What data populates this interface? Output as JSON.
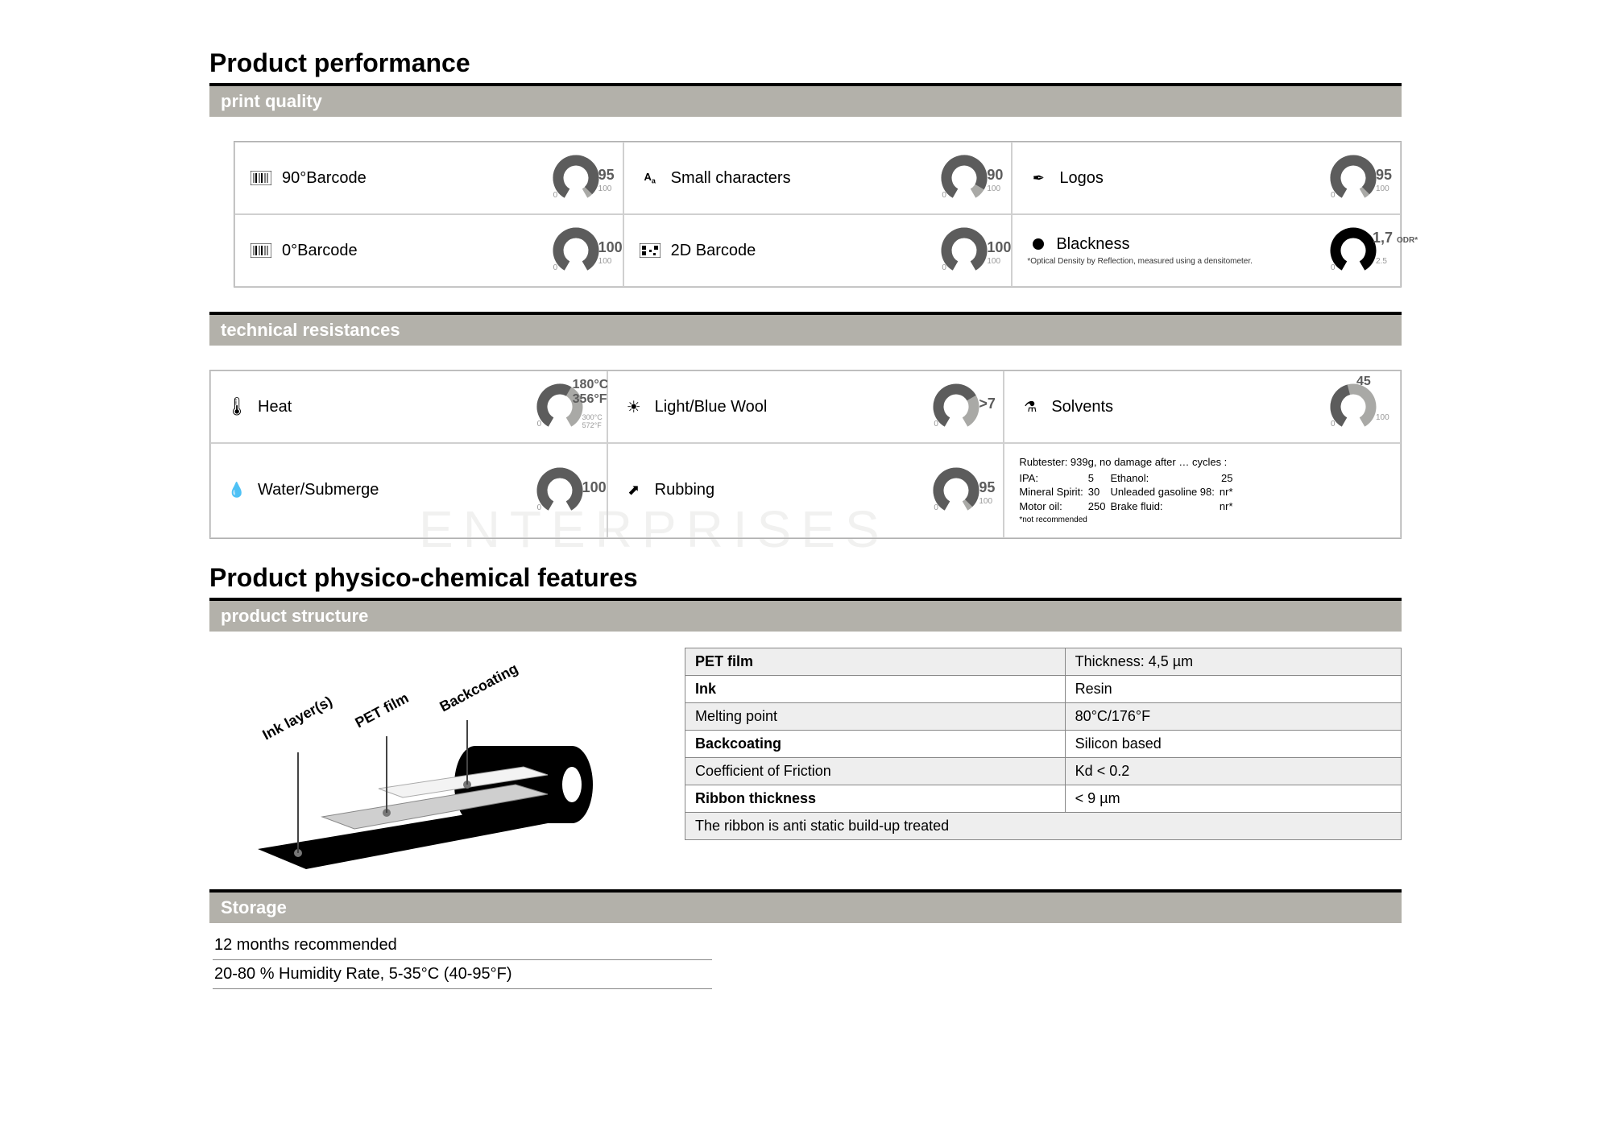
{
  "colors": {
    "ring_bg": "#a9a9a6",
    "ring_fg": "#5c5c5c",
    "ring_black": "#000000",
    "bar_bg": "#b3b1aa",
    "rule": "#000000"
  },
  "sections": {
    "performance_title": "Product performance",
    "print_quality": "print quality",
    "tech_resist": "technical resistances",
    "physico_title": "Product physico-chemical features",
    "structure": "product structure",
    "storage": "Storage"
  },
  "print_quality": [
    {
      "icon": "barcode-icon",
      "label": "90°Barcode",
      "value": 95,
      "max": 100
    },
    {
      "icon": "chars-icon",
      "label": "Small characters",
      "value": 90,
      "max": 100
    },
    {
      "icon": "logo-icon",
      "label": "Logos",
      "value": 95,
      "max": 100
    },
    {
      "icon": "barcode-icon",
      "label": "0°Barcode",
      "value": 100,
      "max": 100
    },
    {
      "icon": "qr-icon",
      "label": "2D Barcode",
      "value": 100,
      "max": 100
    },
    {
      "icon": "dot-icon",
      "label": "Blackness",
      "value_text": "1,7",
      "unit": "ODR*",
      "max": 2.5,
      "note": "*Optical Density by Reflection, measured using a densitometer.",
      "black_ring": true,
      "value": 1.7
    }
  ],
  "tech_resist": {
    "heat": {
      "label": "Heat",
      "value_top": "180°C",
      "value_top2": "356°F",
      "max_lbl": "300°C",
      "max_lbl2": "572°F",
      "value": 180,
      "max": 300
    },
    "light": {
      "label": "Light/Blue Wool",
      "value_text": ">7",
      "value": 7,
      "max": 10
    },
    "solvents": {
      "label": "Solvents",
      "value": 45,
      "max": 100
    },
    "water": {
      "label": "Water/Submerge",
      "value": 100,
      "max": 100
    },
    "rubbing": {
      "label": "Rubbing",
      "value": 95,
      "max": 100
    },
    "solvent_detail": {
      "head": "Rubtester: 939g, no damage after … cycles :",
      "rows": [
        [
          "IPA:",
          "5",
          "Ethanol:",
          "25"
        ],
        [
          "Mineral Spirit:",
          "30",
          "Unleaded gasoline 98:",
          "nr*"
        ],
        [
          "Motor oil:",
          "250",
          "Brake fluid:",
          "nr*"
        ]
      ],
      "foot": "*not recommended"
    }
  },
  "structure_table": [
    {
      "cells": [
        "PET film",
        "Thickness: 4,5 µm"
      ],
      "bold0": true,
      "alt": true
    },
    {
      "cells": [
        "Ink",
        "Resin"
      ],
      "bold0": true
    },
    {
      "cells": [
        "Melting point",
        "80°C/176°F"
      ],
      "alt": true
    },
    {
      "cells": [
        "Backcoating",
        "Silicon based"
      ],
      "bold0": true
    },
    {
      "cells": [
        "Coefficient of Friction",
        "Kd < 0.2"
      ],
      "alt": true
    },
    {
      "cells": [
        "Ribbon thickness",
        "< 9 µm"
      ],
      "bold0": true
    },
    {
      "cells": [
        "The ribbon is anti static build-up treated"
      ],
      "span": 2,
      "alt": true
    }
  ],
  "diagram_labels": {
    "ink": "Ink layer(s)",
    "pet": "PET film",
    "back": "Backcoating"
  },
  "storage_lines": [
    "12 months recommended",
    "20-80 % Humidity Rate, 5-35°C (40-95°F)"
  ],
  "watermark": "ENTERPRISES"
}
